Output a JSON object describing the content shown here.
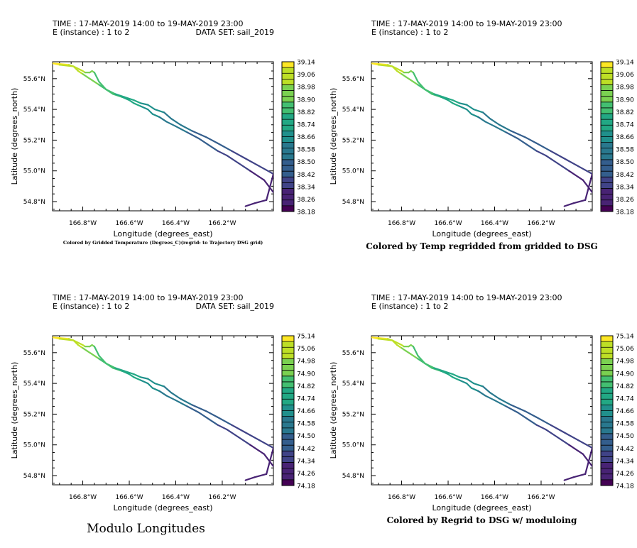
{
  "panels": [
    {
      "time_line": "TIME : 17-MAY-2019 14:00 to 19-MAY-2019 23:00",
      "instance_line": "E (instance) : 1 to 2",
      "dataset_line": "DATA SET: sail_2019",
      "caption": "Colored by Gridded Temperature (Degrees_C)(regrid: to Trajectory DSG grid)",
      "caption_style": "small",
      "colorbar_labels": [
        "39.14",
        "39.06",
        "38.98",
        "38.90",
        "38.82",
        "38.74",
        "38.66",
        "38.58",
        "38.50",
        "38.42",
        "38.34",
        "38.26",
        "38.18"
      ]
    },
    {
      "time_line": "TIME : 17-MAY-2019 14:00 to 19-MAY-2019 23:00",
      "instance_line": "E (instance) : 1 to 2",
      "dataset_line": "",
      "caption": "Colored by Temp regridded from gridded to DSG",
      "caption_style": "normal",
      "colorbar_labels": [
        "39.14",
        "39.06",
        "38.98",
        "38.90",
        "38.82",
        "38.74",
        "38.66",
        "38.58",
        "38.50",
        "38.42",
        "38.34",
        "38.26",
        "38.18"
      ]
    },
    {
      "time_line": "TIME : 17-MAY-2019 14:00 to 19-MAY-2019 23:00",
      "instance_line": "E (instance) : 1 to 2",
      "dataset_line": "DATA SET: sail_2019",
      "caption": "Modulo Longitudes",
      "caption_style": "big",
      "colorbar_labels": [
        "75.14",
        "75.06",
        "74.98",
        "74.90",
        "74.82",
        "74.74",
        "74.66",
        "74.58",
        "74.50",
        "74.42",
        "74.34",
        "74.26",
        "74.18"
      ]
    },
    {
      "time_line": "TIME : 17-MAY-2019 14:00 to 19-MAY-2019 23:00",
      "instance_line": "E (instance) : 1 to 2",
      "dataset_line": "",
      "caption": "Colored by Regrid to DSG w/ moduloing",
      "caption_style": "normal",
      "colorbar_labels": [
        "75.14",
        "75.06",
        "74.98",
        "74.90",
        "74.82",
        "74.74",
        "74.66",
        "74.58",
        "74.50",
        "74.42",
        "74.34",
        "74.26",
        "74.18"
      ]
    }
  ],
  "axes": {
    "xlabel": "Longitude (degrees_east)",
    "ylabel": "Latitude (degrees_north)",
    "x_ticks": [
      "166.8°W",
      "166.6°W",
      "166.4°W",
      "166.2°W"
    ],
    "y_ticks": [
      "55.6°N",
      "55.4°N",
      "55.2°N",
      "55.0°N",
      "54.8°N"
    ]
  },
  "chart_data": {
    "type": "line",
    "x_label": "Longitude (degrees_east)",
    "y_label": "Latitude (degrees_north)",
    "xlim": [
      -166.93,
      -165.98
    ],
    "ylim": [
      54.74,
      55.71
    ],
    "colormap": [
      "#440154",
      "#482374",
      "#404387",
      "#345e8d",
      "#29788e",
      "#20908c",
      "#22a884",
      "#43bf71",
      "#7ad151",
      "#bddf26",
      "#fde725"
    ],
    "instances": [
      {
        "lon": [
          -166.93,
          -166.86,
          -166.84,
          -166.82,
          -166.8,
          -166.78,
          -166.76,
          -166.73,
          -166.7,
          -166.67,
          -166.63,
          -166.6,
          -166.58,
          -166.55,
          -166.52,
          -166.5,
          -166.47,
          -166.44,
          -166.4,
          -166.35,
          -166.3,
          -166.26,
          -166.22,
          -166.18,
          -166.13,
          -166.08,
          -166.04,
          -166.02,
          -165.98
        ],
        "lat": [
          55.7,
          55.69,
          55.68,
          55.65,
          55.63,
          55.61,
          55.59,
          55.56,
          55.53,
          55.5,
          55.48,
          55.46,
          55.44,
          55.42,
          55.4,
          55.37,
          55.35,
          55.32,
          55.29,
          55.25,
          55.21,
          55.17,
          55.13,
          55.1,
          55.05,
          55.0,
          54.96,
          54.94,
          54.86
        ]
      },
      {
        "lon": [
          -166.93,
          -166.9,
          -166.84,
          -166.8,
          -166.79,
          -166.77,
          -166.76,
          -166.75,
          -166.73,
          -166.7,
          -166.66,
          -166.62,
          -166.58,
          -166.55,
          -166.52,
          -166.49,
          -166.45,
          -166.42,
          -166.38,
          -166.33,
          -166.27,
          -166.22,
          -166.16,
          -166.1,
          -166.04,
          -165.98,
          -166.01,
          -166.06,
          -166.1
        ],
        "lat": [
          55.7,
          55.69,
          55.68,
          55.65,
          55.64,
          55.64,
          55.65,
          55.64,
          55.58,
          55.53,
          55.5,
          55.48,
          55.46,
          55.44,
          55.43,
          55.4,
          55.38,
          55.34,
          55.3,
          55.26,
          55.22,
          55.18,
          55.13,
          55.08,
          55.03,
          54.98,
          54.81,
          54.79,
          54.77
        ]
      }
    ],
    "colorbar_ranges": [
      {
        "panel": 1,
        "min": 38.18,
        "max": 39.14
      },
      {
        "panel": 2,
        "min": 38.18,
        "max": 39.14
      },
      {
        "panel": 3,
        "min": 74.18,
        "max": 75.14
      },
      {
        "panel": 4,
        "min": 74.18,
        "max": 75.14
      }
    ]
  }
}
